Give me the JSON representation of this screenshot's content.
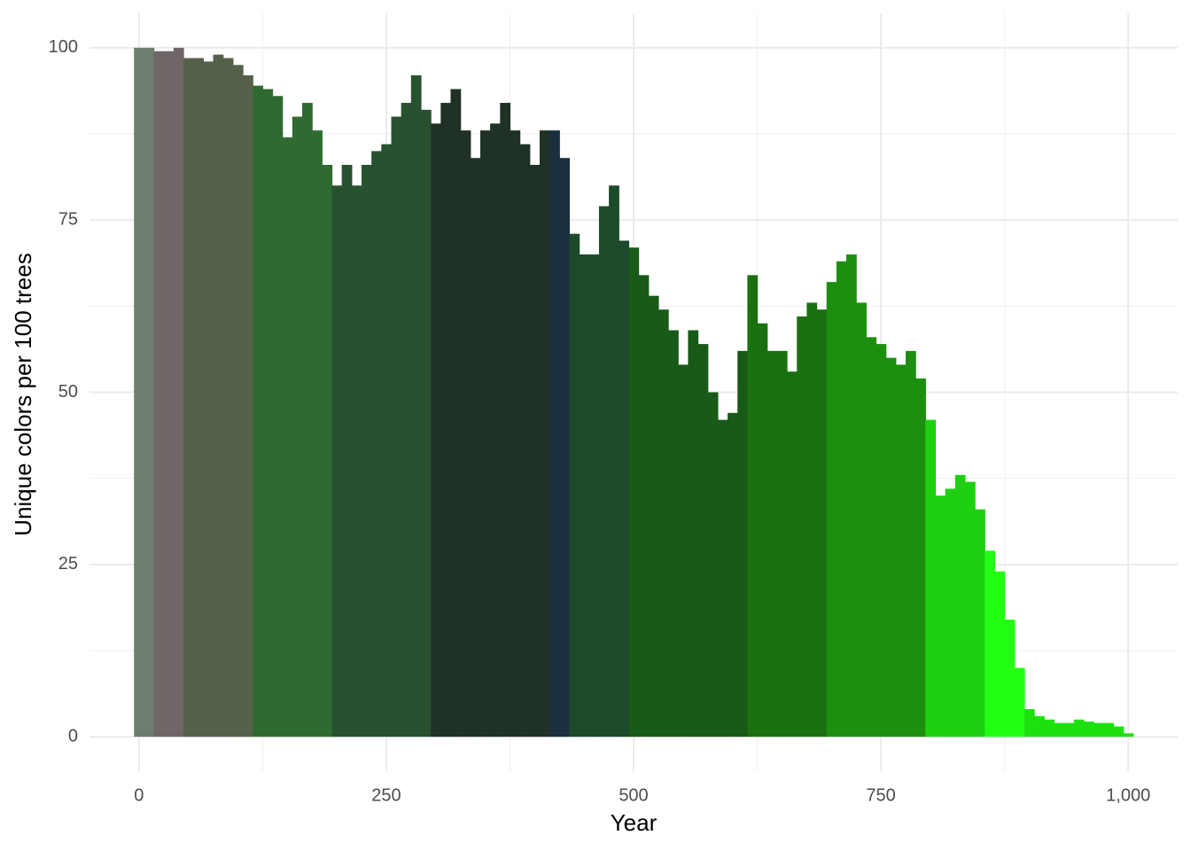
{
  "chart_data": {
    "type": "bar",
    "x_label": "Year",
    "y_label": "Unique colors per 100 trees",
    "x": [
      0,
      10,
      20,
      30,
      40,
      50,
      60,
      70,
      80,
      90,
      100,
      110,
      120,
      130,
      140,
      150,
      160,
      170,
      180,
      190,
      200,
      210,
      220,
      230,
      240,
      250,
      260,
      270,
      280,
      290,
      300,
      310,
      320,
      330,
      340,
      350,
      360,
      370,
      380,
      390,
      400,
      410,
      420,
      430,
      440,
      450,
      460,
      470,
      480,
      490,
      500,
      510,
      520,
      530,
      540,
      550,
      560,
      570,
      580,
      590,
      600,
      610,
      620,
      630,
      640,
      650,
      660,
      670,
      680,
      690,
      700,
      710,
      720,
      730,
      740,
      750,
      760,
      770,
      780,
      790,
      800,
      810,
      820,
      830,
      840,
      850,
      860,
      870,
      880,
      890,
      900,
      910,
      920,
      930,
      940,
      950,
      960,
      970,
      980,
      990,
      1000
    ],
    "values": [
      100,
      100,
      99.5,
      99.5,
      100,
      98.5,
      98.5,
      98,
      99,
      98.5,
      97.5,
      96,
      94.5,
      94,
      93,
      87,
      90,
      92,
      88,
      83,
      80,
      83,
      80,
      83,
      85,
      86,
      90,
      92,
      96,
      91,
      89,
      92,
      94,
      88,
      84,
      88,
      89,
      92,
      88,
      86,
      83,
      88,
      88,
      84,
      73,
      70,
      70,
      77,
      80,
      72,
      71,
      67,
      64,
      62,
      59,
      54,
      59,
      57,
      50,
      46,
      47,
      56,
      67,
      60,
      56,
      56,
      53,
      61,
      63,
      62,
      66,
      69,
      70,
      63,
      58,
      57,
      55,
      54,
      56,
      52,
      46,
      35,
      36,
      38,
      37,
      33,
      27,
      24,
      17,
      10,
      4,
      3,
      2.5,
      2,
      2,
      2.5,
      2.2,
      2,
      2,
      1.5,
      0.5
    ],
    "colors": [
      "#6e7d6e",
      "#6e7d6e",
      "#6f6667",
      "#6f6667",
      "#6f6667",
      "#55604b",
      "#55604b",
      "#55604b",
      "#55604b",
      "#55604b",
      "#55604b",
      "#55604b",
      "#2f6b30",
      "#2f6b30",
      "#2f6b30",
      "#2f6b30",
      "#2f6b30",
      "#2f6b30",
      "#2f6b30",
      "#2f6b30",
      "#27512f",
      "#27512f",
      "#27512f",
      "#27512f",
      "#27512f",
      "#27512f",
      "#27512f",
      "#27512f",
      "#27512f",
      "#27512f",
      "#1f3225",
      "#1f3225",
      "#1f3225",
      "#1f3225",
      "#1f3225",
      "#1f3225",
      "#1f3225",
      "#1f3225",
      "#1f3225",
      "#1f3225",
      "#1f3225",
      "#1f3225",
      "#1a3040",
      "#1a3040",
      "#1d4a2a",
      "#1d4a2a",
      "#1d4a2a",
      "#1d4a2a",
      "#1d4a2a",
      "#1d4a2a",
      "#185a18",
      "#185a18",
      "#185a18",
      "#185a18",
      "#185a18",
      "#185a18",
      "#185a18",
      "#185a18",
      "#185a18",
      "#185a18",
      "#185a18",
      "#185a18",
      "#1a7010",
      "#1a7010",
      "#1a7010",
      "#1a7010",
      "#1a7010",
      "#1a7010",
      "#1a7010",
      "#1a7010",
      "#1d8f10",
      "#1d8f10",
      "#1d8f10",
      "#1d8f10",
      "#1d8f10",
      "#1d8f10",
      "#1d8f10",
      "#1d8f10",
      "#1d8f10",
      "#1d8f10",
      "#1ed010",
      "#1ed010",
      "#1ed010",
      "#1ed010",
      "#1ed010",
      "#1ed010",
      "#22ff14",
      "#22ff14",
      "#22ff14",
      "#22ff14",
      "#1de010",
      "#1de010",
      "#1de010",
      "#1de010",
      "#1de010",
      "#1de010",
      "#1de010",
      "#1de010",
      "#1de010",
      "#1de010",
      "#1de010"
    ],
    "xlim": [
      -50,
      1050
    ],
    "ylim": [
      -5,
      105
    ],
    "xticks": [
      0,
      250,
      500,
      750,
      {
        "value": 1000,
        "label": "1,000"
      }
    ],
    "yticks": [
      0,
      25,
      50,
      75,
      100
    ],
    "minor_xticks": [
      125,
      375,
      625,
      875
    ],
    "minor_yticks": [
      12.5,
      37.5,
      62.5,
      87.5
    ],
    "grid": true
  }
}
